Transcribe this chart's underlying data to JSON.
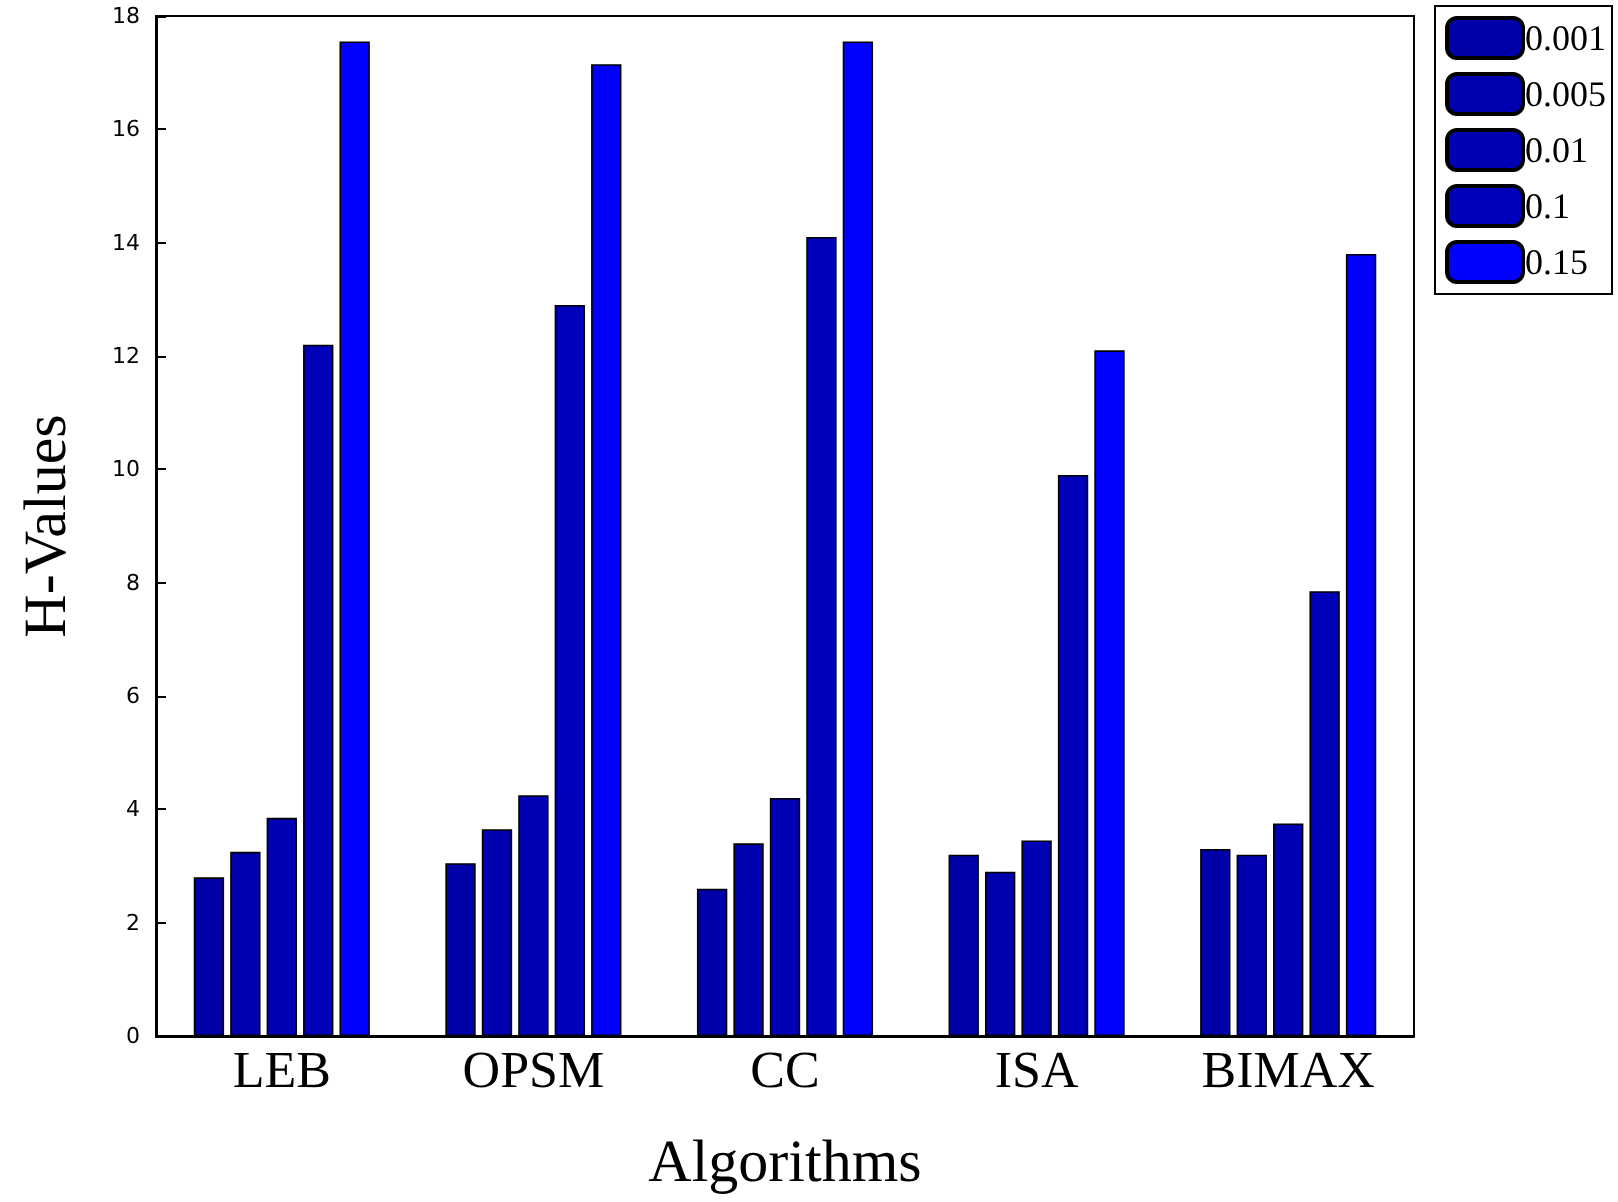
{
  "chart_data": {
    "type": "bar",
    "xlabel": "Algorithms",
    "ylabel": "H-Values",
    "categories": [
      "LEB",
      "OPSM",
      "CC",
      "ISA",
      "BIMAX"
    ],
    "series": [
      {
        "name": "0.001",
        "color": "#0000a8",
        "values": [
          2.8,
          3.05,
          2.6,
          3.2,
          3.3
        ]
      },
      {
        "name": "0.005",
        "color": "#0000ae",
        "values": [
          3.25,
          3.65,
          3.4,
          2.9,
          3.2
        ]
      },
      {
        "name": "0.01",
        "color": "#0000b4",
        "values": [
          3.85,
          4.25,
          4.2,
          3.45,
          3.75
        ]
      },
      {
        "name": "0.1",
        "color": "#0000bb",
        "values": [
          12.2,
          12.9,
          14.1,
          9.9,
          7.85
        ]
      },
      {
        "name": "0.15",
        "color": "#0000ff",
        "values": [
          17.55,
          17.15,
          17.55,
          12.1,
          13.8
        ]
      }
    ],
    "ylim": [
      0,
      18
    ],
    "yticks": [
      0,
      2,
      4,
      6,
      8,
      10,
      12,
      14,
      16,
      18
    ],
    "grid": false,
    "legend": "top right"
  }
}
